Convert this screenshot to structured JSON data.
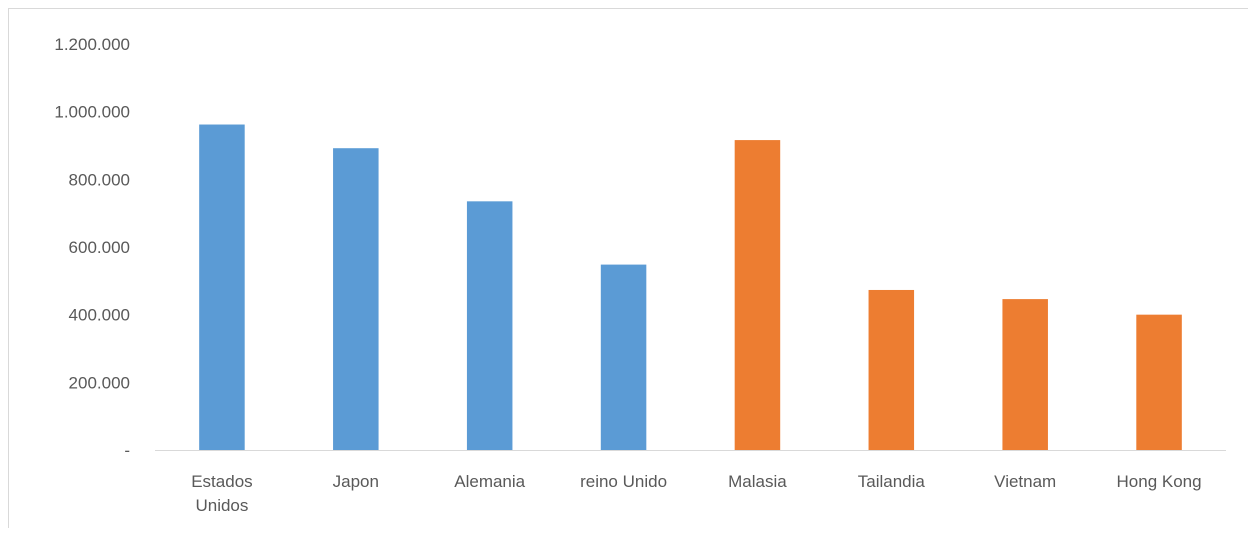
{
  "chart_data": {
    "type": "bar",
    "categories": [
      "Estados Unidos",
      "Japon",
      "Alemania",
      "reino Unido",
      "Malasia",
      "Tailandia",
      "Vietnam",
      "Hong Kong"
    ],
    "category_lines": [
      [
        "Estados",
        "Unidos"
      ],
      [
        "Japon"
      ],
      [
        "Alemania"
      ],
      [
        "reino Unido"
      ],
      [
        "Malasia"
      ],
      [
        "Tailandia"
      ],
      [
        "Vietnam"
      ],
      [
        "Hong Kong"
      ]
    ],
    "values": [
      962000,
      892000,
      735000,
      548000,
      916000,
      473000,
      446000,
      400000
    ],
    "colors": [
      "#5B9BD5",
      "#5B9BD5",
      "#5B9BD5",
      "#5B9BD5",
      "#ED7D31",
      "#ED7D31",
      "#ED7D31",
      "#ED7D31"
    ],
    "ylim": [
      0,
      1200000
    ],
    "yticks": [
      0,
      200000,
      400000,
      600000,
      800000,
      1000000,
      1200000
    ],
    "ytick_labels": [
      "-",
      "200.000",
      "400.000",
      "600.000",
      "800.000",
      "1.000.000",
      "1.200.000"
    ],
    "grid": false,
    "axis_color": "#d9d9d9"
  }
}
